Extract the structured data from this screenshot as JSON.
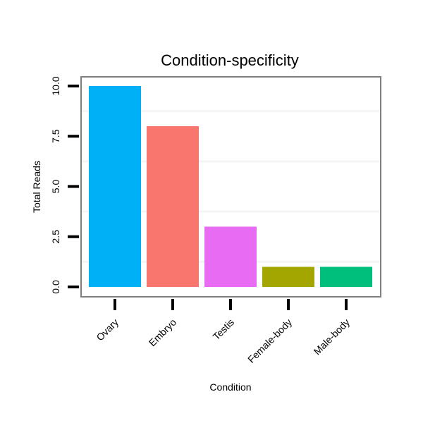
{
  "chart_data": {
    "type": "bar",
    "title": "Condition-specificity",
    "xlabel": "Condition",
    "ylabel": "Total Reads",
    "categories": [
      "Ovary",
      "Embryo",
      "Testis",
      "Female-body",
      "Male-body"
    ],
    "values": [
      10,
      8,
      3,
      1,
      1
    ],
    "colors": [
      "#00b0f6",
      "#f8766d",
      "#e76bf3",
      "#a3a500",
      "#00bf7d"
    ],
    "ylim": [
      0,
      10
    ],
    "yticks": [
      0,
      2.5,
      5,
      7.5,
      10
    ],
    "ytick_labels": [
      "0.0",
      "2.5",
      "5.0",
      "7.5",
      "10.0"
    ],
    "grid": true,
    "legend": "none",
    "panel_border_color": "#7f7f7f",
    "grid_color": "#f5f5f5"
  }
}
